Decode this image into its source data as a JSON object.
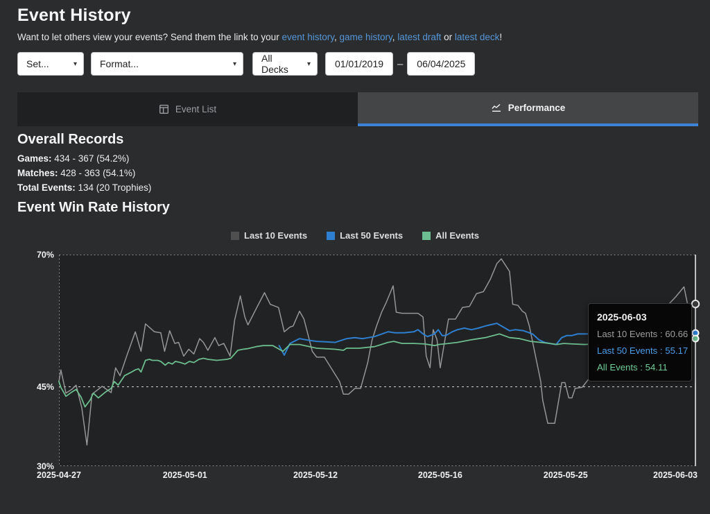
{
  "page": {
    "title": "Event History",
    "subtitle_prefix": "Want to let others view your events? Send them the link to your ",
    "link_event_history": "event history",
    "link_game_history": "game history",
    "link_latest_draft": "latest draft",
    "link_latest_deck": "latest deck",
    "sep_comma": ", ",
    "sep_or": " or ",
    "suffix": "!"
  },
  "filters": {
    "set_label": "Set...",
    "format_label": "Format...",
    "decks_label": "All Decks",
    "date_from": "01/01/2019",
    "date_to": "06/04/2025",
    "range_separator": "–"
  },
  "tabs": {
    "event_list_label": "Event List",
    "performance_label": "Performance"
  },
  "records": {
    "heading": "Overall Records",
    "rows": [
      {
        "label": "Games:",
        "value": " 434 - 367 (54.2%)"
      },
      {
        "label": "Matches:",
        "value": " 428 - 363 (54.1%)"
      },
      {
        "label": "Total Events:",
        "value": " 134 (20 Trophies)"
      }
    ]
  },
  "chart_heading": "Event Win Rate History",
  "tooltip": {
    "date": "2025-06-03",
    "separator": " : ",
    "rows": [
      {
        "label": "Last 10 Events",
        "value": "60.66",
        "color": "#9e9e9e"
      },
      {
        "label": "Last 50 Events",
        "value": "55.17",
        "color": "#4a9eea"
      },
      {
        "label": "All Events",
        "value": "54.11",
        "color": "#6fce9a"
      }
    ]
  },
  "colors": {
    "accent_blue": "#3d84d8",
    "link_blue": "#5596d8",
    "plot_bg": "#212224",
    "page_bg": "#2b2c2e"
  },
  "chart_data": {
    "type": "line",
    "title": "Event Win Rate History",
    "x_type": "event-index-fraction",
    "ylim": [
      30,
      70
    ],
    "grid": "dashed line at 45% only; dashed plot border",
    "legend_position": "top-center",
    "yticks": [
      {
        "label": "70%",
        "value": 70,
        "grid": false
      },
      {
        "label": "45%",
        "value": 45,
        "grid": true
      },
      {
        "label": "30%",
        "value": 30,
        "grid": false
      }
    ],
    "xticks": [
      {
        "label": "2025-04-27",
        "pos": 0.0
      },
      {
        "label": "2025-05-01",
        "pos": 0.198
      },
      {
        "label": "2025-05-12",
        "pos": 0.403
      },
      {
        "label": "2025-05-16",
        "pos": 0.599
      },
      {
        "label": "2025-05-25",
        "pos": 0.796
      },
      {
        "label": "2025-06-03",
        "pos": 1.0
      }
    ],
    "crosshair_pos": 1.0,
    "series": [
      {
        "name": "Last 10 Events",
        "color": "#969696",
        "legend_color": "#4f4f4f",
        "line_width": 1.5,
        "marker": {
          "fill": "#3a3a3a",
          "stroke": "#e8e8e8",
          "r": 5.2
        },
        "end_value": 60.66,
        "points": [
          [
            0,
            46
          ],
          [
            0.003,
            48.2
          ],
          [
            0.011,
            43.8
          ],
          [
            0.02,
            44.5
          ],
          [
            0.027,
            45.3
          ],
          [
            0.036,
            41
          ],
          [
            0.044,
            34
          ],
          [
            0.052,
            43.6
          ],
          [
            0.068,
            45.1
          ],
          [
            0.082,
            43.9
          ],
          [
            0.089,
            48.6
          ],
          [
            0.096,
            47.1
          ],
          [
            0.107,
            51
          ],
          [
            0.12,
            55.4
          ],
          [
            0.129,
            51.7
          ],
          [
            0.136,
            56.9
          ],
          [
            0.15,
            55.4
          ],
          [
            0.16,
            55.2
          ],
          [
            0.166,
            51.7
          ],
          [
            0.174,
            55.6
          ],
          [
            0.182,
            53.2
          ],
          [
            0.188,
            53.4
          ],
          [
            0.196,
            50.8
          ],
          [
            0.204,
            52.1
          ],
          [
            0.212,
            51.2
          ],
          [
            0.221,
            54.1
          ],
          [
            0.227,
            53.4
          ],
          [
            0.234,
            51.9
          ],
          [
            0.245,
            54.3
          ],
          [
            0.251,
            52.8
          ],
          [
            0.259,
            53.2
          ],
          [
            0.269,
            50.8
          ],
          [
            0.276,
            57.6
          ],
          [
            0.285,
            62.2
          ],
          [
            0.292,
            58.2
          ],
          [
            0.297,
            56.7
          ],
          [
            0.31,
            59.8
          ],
          [
            0.323,
            62.8
          ],
          [
            0.332,
            60.6
          ],
          [
            0.345,
            60
          ],
          [
            0.354,
            55.4
          ],
          [
            0.363,
            56.3
          ],
          [
            0.368,
            56.5
          ],
          [
            0.378,
            59.3
          ],
          [
            0.385,
            57.8
          ],
          [
            0.398,
            51.7
          ],
          [
            0.405,
            50.6
          ],
          [
            0.417,
            50.6
          ],
          [
            0.441,
            46
          ],
          [
            0.447,
            43.6
          ],
          [
            0.455,
            43.6
          ],
          [
            0.465,
            44.7
          ],
          [
            0.474,
            44.7
          ],
          [
            0.485,
            49.5
          ],
          [
            0.492,
            53.9
          ],
          [
            0.499,
            56.5
          ],
          [
            0.507,
            59.1
          ],
          [
            0.514,
            60.9
          ],
          [
            0.525,
            64.1
          ],
          [
            0.53,
            59.1
          ],
          [
            0.539,
            58.9
          ],
          [
            0.564,
            58.9
          ],
          [
            0.572,
            58.2
          ],
          [
            0.577,
            50.8
          ],
          [
            0.583,
            48.6
          ],
          [
            0.588,
            55.8
          ],
          [
            0.594,
            53.9
          ],
          [
            0.599,
            48.6
          ],
          [
            0.606,
            53.6
          ],
          [
            0.612,
            57.8
          ],
          [
            0.623,
            57.8
          ],
          [
            0.634,
            60
          ],
          [
            0.645,
            60.2
          ],
          [
            0.656,
            62.6
          ],
          [
            0.667,
            63
          ],
          [
            0.678,
            65.4
          ],
          [
            0.688,
            68.3
          ],
          [
            0.695,
            69.2
          ],
          [
            0.708,
            66.8
          ],
          [
            0.713,
            60.6
          ],
          [
            0.721,
            60.4
          ],
          [
            0.728,
            59.3
          ],
          [
            0.733,
            58.9
          ],
          [
            0.739,
            56.5
          ],
          [
            0.757,
            46
          ],
          [
            0.76,
            42.5
          ],
          [
            0.768,
            38.1
          ],
          [
            0.779,
            38.1
          ],
          [
            0.79,
            45.8
          ],
          [
            0.795,
            45.8
          ],
          [
            0.801,
            42.9
          ],
          [
            0.806,
            42.9
          ],
          [
            0.811,
            44.7
          ],
          [
            0.822,
            44.9
          ],
          [
            0.839,
            47.5
          ],
          [
            0.855,
            51.5
          ],
          [
            0.871,
            50
          ],
          [
            0.888,
            54.5
          ],
          [
            0.904,
            56.5
          ],
          [
            0.92,
            55.5
          ],
          [
            0.937,
            57.5
          ],
          [
            0.953,
            60
          ],
          [
            0.969,
            62
          ],
          [
            0.982,
            63.9
          ],
          [
            0.989,
            59.8
          ],
          [
            1,
            60.66
          ]
        ]
      },
      {
        "name": "Last 50 Events",
        "color": "#2e7fd0",
        "legend_color": "#2e7fd0",
        "line_width": 2,
        "marker": {
          "fill": "#2e7fd0",
          "stroke": "#ffffff",
          "r": 4.5
        },
        "end_value": 55.17,
        "points": [
          [
            0.346,
            52.8
          ],
          [
            0.354,
            51
          ],
          [
            0.363,
            53.2
          ],
          [
            0.378,
            54.1
          ],
          [
            0.392,
            53.8
          ],
          [
            0.405,
            53.6
          ],
          [
            0.419,
            53.5
          ],
          [
            0.434,
            53.4
          ],
          [
            0.452,
            54.1
          ],
          [
            0.465,
            54.3
          ],
          [
            0.477,
            54.1
          ],
          [
            0.496,
            54.5
          ],
          [
            0.517,
            55.4
          ],
          [
            0.528,
            55.2
          ],
          [
            0.542,
            55.2
          ],
          [
            0.558,
            55.4
          ],
          [
            0.564,
            55.8
          ],
          [
            0.572,
            55
          ],
          [
            0.579,
            54.5
          ],
          [
            0.59,
            55
          ],
          [
            0.596,
            55.8
          ],
          [
            0.602,
            54.7
          ],
          [
            0.608,
            54.7
          ],
          [
            0.618,
            55.4
          ],
          [
            0.626,
            55.8
          ],
          [
            0.637,
            56.1
          ],
          [
            0.648,
            55.8
          ],
          [
            0.659,
            56.1
          ],
          [
            0.67,
            56.5
          ],
          [
            0.688,
            57
          ],
          [
            0.708,
            55.6
          ],
          [
            0.717,
            55.8
          ],
          [
            0.73,
            55.6
          ],
          [
            0.744,
            55
          ],
          [
            0.754,
            53.9
          ],
          [
            0.763,
            53.4
          ],
          [
            0.771,
            53.2
          ],
          [
            0.781,
            53
          ],
          [
            0.79,
            54.3
          ],
          [
            0.798,
            54.7
          ],
          [
            0.806,
            54.7
          ],
          [
            0.815,
            55
          ],
          [
            0.83,
            55
          ],
          [
            0.855,
            55
          ],
          [
            0.888,
            55.1
          ],
          [
            0.92,
            55
          ],
          [
            0.953,
            55.1
          ],
          [
            0.98,
            55.1
          ],
          [
            1,
            55.17
          ]
        ]
      },
      {
        "name": "All Events",
        "color": "#6cbd8f",
        "legend_color": "#6cbd8f",
        "line_width": 1.8,
        "marker": {
          "fill": "#6cbd8f",
          "stroke": "#ffffff",
          "r": 4.5
        },
        "end_value": 54.11,
        "points": [
          [
            0,
            46
          ],
          [
            0.003,
            44.9
          ],
          [
            0.011,
            43.2
          ],
          [
            0.02,
            44
          ],
          [
            0.027,
            44.5
          ],
          [
            0.035,
            43
          ],
          [
            0.041,
            41.2
          ],
          [
            0.049,
            42.5
          ],
          [
            0.054,
            43.8
          ],
          [
            0.062,
            42.9
          ],
          [
            0.073,
            44
          ],
          [
            0.082,
            44.7
          ],
          [
            0.087,
            46
          ],
          [
            0.093,
            45.3
          ],
          [
            0.103,
            47.1
          ],
          [
            0.114,
            47.8
          ],
          [
            0.12,
            48.2
          ],
          [
            0.125,
            48.4
          ],
          [
            0.129,
            47.8
          ],
          [
            0.136,
            50
          ],
          [
            0.142,
            50.2
          ],
          [
            0.147,
            50
          ],
          [
            0.155,
            50
          ],
          [
            0.16,
            49.8
          ],
          [
            0.167,
            49.1
          ],
          [
            0.172,
            49.6
          ],
          [
            0.178,
            49.3
          ],
          [
            0.183,
            49.8
          ],
          [
            0.191,
            49.6
          ],
          [
            0.198,
            49.3
          ],
          [
            0.205,
            49.8
          ],
          [
            0.212,
            49.6
          ],
          [
            0.22,
            50.2
          ],
          [
            0.227,
            50.4
          ],
          [
            0.234,
            50.2
          ],
          [
            0.248,
            50
          ],
          [
            0.264,
            50.2
          ],
          [
            0.27,
            50.4
          ],
          [
            0.281,
            51.9
          ],
          [
            0.289,
            52.1
          ],
          [
            0.296,
            52.2
          ],
          [
            0.31,
            52.6
          ],
          [
            0.321,
            52.8
          ],
          [
            0.336,
            52.8
          ],
          [
            0.352,
            51.7
          ],
          [
            0.363,
            53
          ],
          [
            0.378,
            53
          ],
          [
            0.405,
            52.3
          ],
          [
            0.434,
            52.1
          ],
          [
            0.447,
            51.9
          ],
          [
            0.452,
            52.3
          ],
          [
            0.472,
            52.3
          ],
          [
            0.496,
            52.6
          ],
          [
            0.517,
            53.4
          ],
          [
            0.526,
            53.6
          ],
          [
            0.539,
            53.2
          ],
          [
            0.558,
            53.2
          ],
          [
            0.575,
            53.1
          ],
          [
            0.59,
            52.8
          ],
          [
            0.597,
            53
          ],
          [
            0.612,
            53.2
          ],
          [
            0.626,
            53.4
          ],
          [
            0.648,
            53.9
          ],
          [
            0.67,
            54.3
          ],
          [
            0.692,
            55
          ],
          [
            0.708,
            54.3
          ],
          [
            0.724,
            54.1
          ],
          [
            0.741,
            53.6
          ],
          [
            0.757,
            53.4
          ],
          [
            0.771,
            53.2
          ],
          [
            0.782,
            53
          ],
          [
            0.793,
            53.2
          ],
          [
            0.808,
            53.1
          ],
          [
            0.826,
            53
          ],
          [
            0.855,
            53.2
          ],
          [
            0.888,
            53.5
          ],
          [
            0.92,
            53.6
          ],
          [
            0.953,
            53.8
          ],
          [
            0.98,
            54
          ],
          [
            1,
            54.11
          ]
        ]
      }
    ]
  }
}
